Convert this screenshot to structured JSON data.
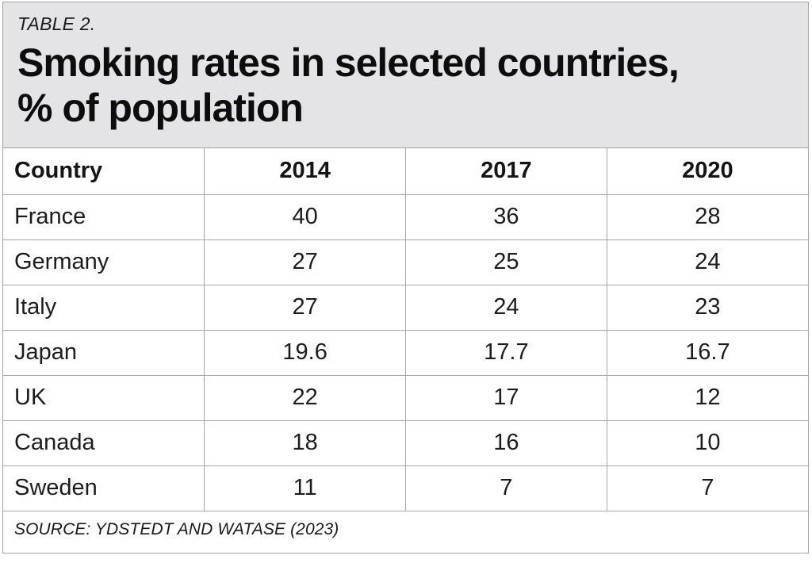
{
  "page": {
    "kicker": "TABLE 2.",
    "title_lines": [
      "Smoking rates in selected countries,",
      "% of population"
    ],
    "source": "SOURCE: YDSTEDT AND WATASE (2023)"
  },
  "chart_data": {
    "type": "table",
    "title": "Smoking rates in selected countries, % of population",
    "kicker": "TABLE 2.",
    "columns": [
      "Country",
      "2014",
      "2017",
      "2020"
    ],
    "rows": [
      [
        "France",
        "40",
        "36",
        "28"
      ],
      [
        "Germany",
        "27",
        "25",
        "24"
      ],
      [
        "Italy",
        "27",
        "24",
        "23"
      ],
      [
        "Japan",
        "19.6",
        "17.7",
        "16.7"
      ],
      [
        "UK",
        "22",
        "17",
        "12"
      ],
      [
        "Canada",
        "18",
        "16",
        "10"
      ],
      [
        "Sweden",
        "11",
        "7",
        "7"
      ]
    ],
    "source": "SOURCE: YDSTEDT AND WATASE (2023)",
    "layout": {
      "grid": true,
      "header_row_bold": true,
      "value_alignment": "center"
    }
  },
  "colors": {
    "band_background": "#e4e4e6",
    "border": "#a8a8a8",
    "text": "#141414"
  }
}
